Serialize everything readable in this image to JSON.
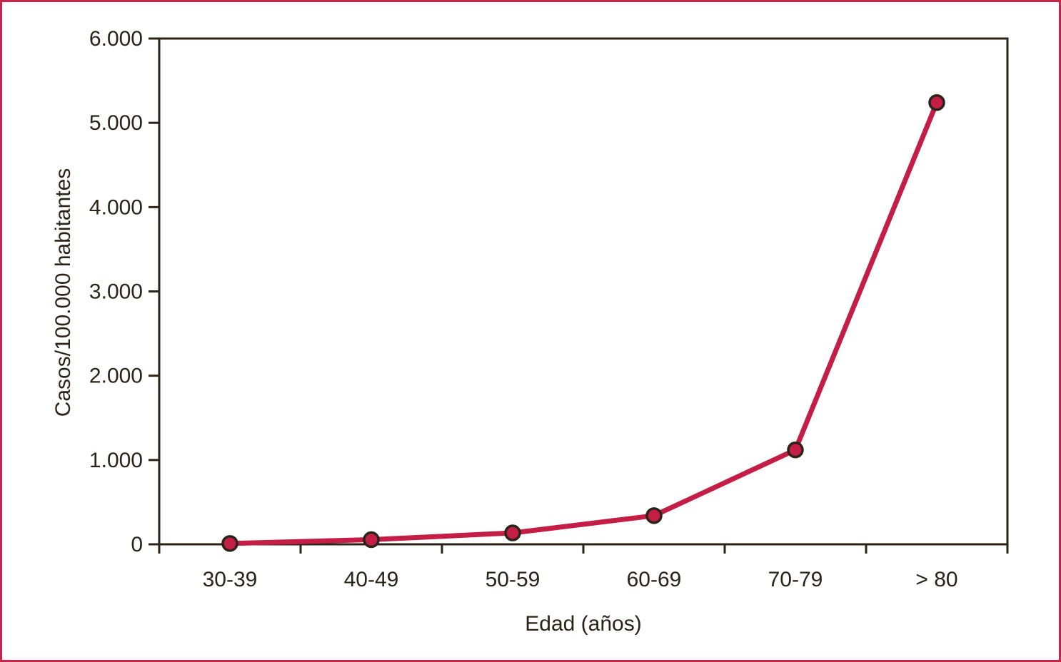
{
  "figure": {
    "border_color": "#c8254c",
    "background_color": "#ffffff"
  },
  "chart_data": {
    "type": "line",
    "title": "",
    "xlabel": "Edad (años)",
    "ylabel": "Casos/100.000 habitantes",
    "categories": [
      "30-39",
      "40-49",
      "50-59",
      "60-69",
      "70-79",
      "> 80"
    ],
    "series": [
      {
        "name": "Casos/100.000 habitantes",
        "values": [
          10,
          55,
          135,
          340,
          1120,
          5240
        ]
      }
    ],
    "ylim": [
      0,
      6000
    ],
    "y_tick_values": [
      0,
      1000,
      2000,
      3000,
      4000,
      5000,
      6000
    ],
    "y_tick_labels": [
      "0",
      "1.000",
      "2.000",
      "3.000",
      "4.000",
      "5.000",
      "6.000"
    ],
    "grid": false,
    "legend": "none",
    "frame": "full-box",
    "colors": {
      "line": "#c51e46",
      "marker_fill": "#c51e46",
      "marker_stroke": "#2b2317",
      "axis": "#2b2317",
      "text": "#2b2317"
    }
  }
}
